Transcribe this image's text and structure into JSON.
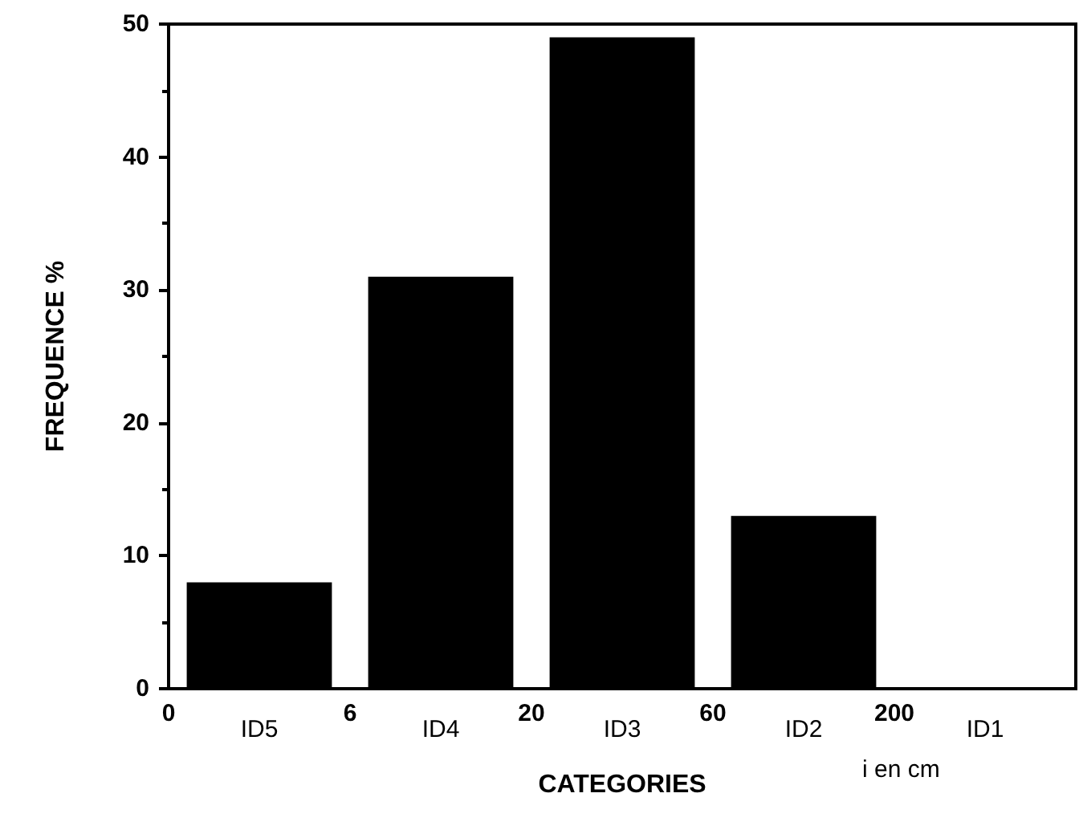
{
  "chart_data": {
    "type": "bar",
    "xlabel": "CATEGORIES",
    "ylabel": "FREQUENCE %",
    "categories": [
      "ID5",
      "ID4",
      "ID3",
      "ID2",
      "ID1"
    ],
    "values": [
      8,
      31,
      49,
      13,
      0
    ],
    "color": "#000000",
    "ylim": [
      0,
      50
    ],
    "yticks": [
      0,
      10,
      20,
      30,
      40,
      50
    ],
    "annotations": [
      "0",
      "6",
      "20",
      "60",
      "200",
      "i en cm"
    ]
  }
}
